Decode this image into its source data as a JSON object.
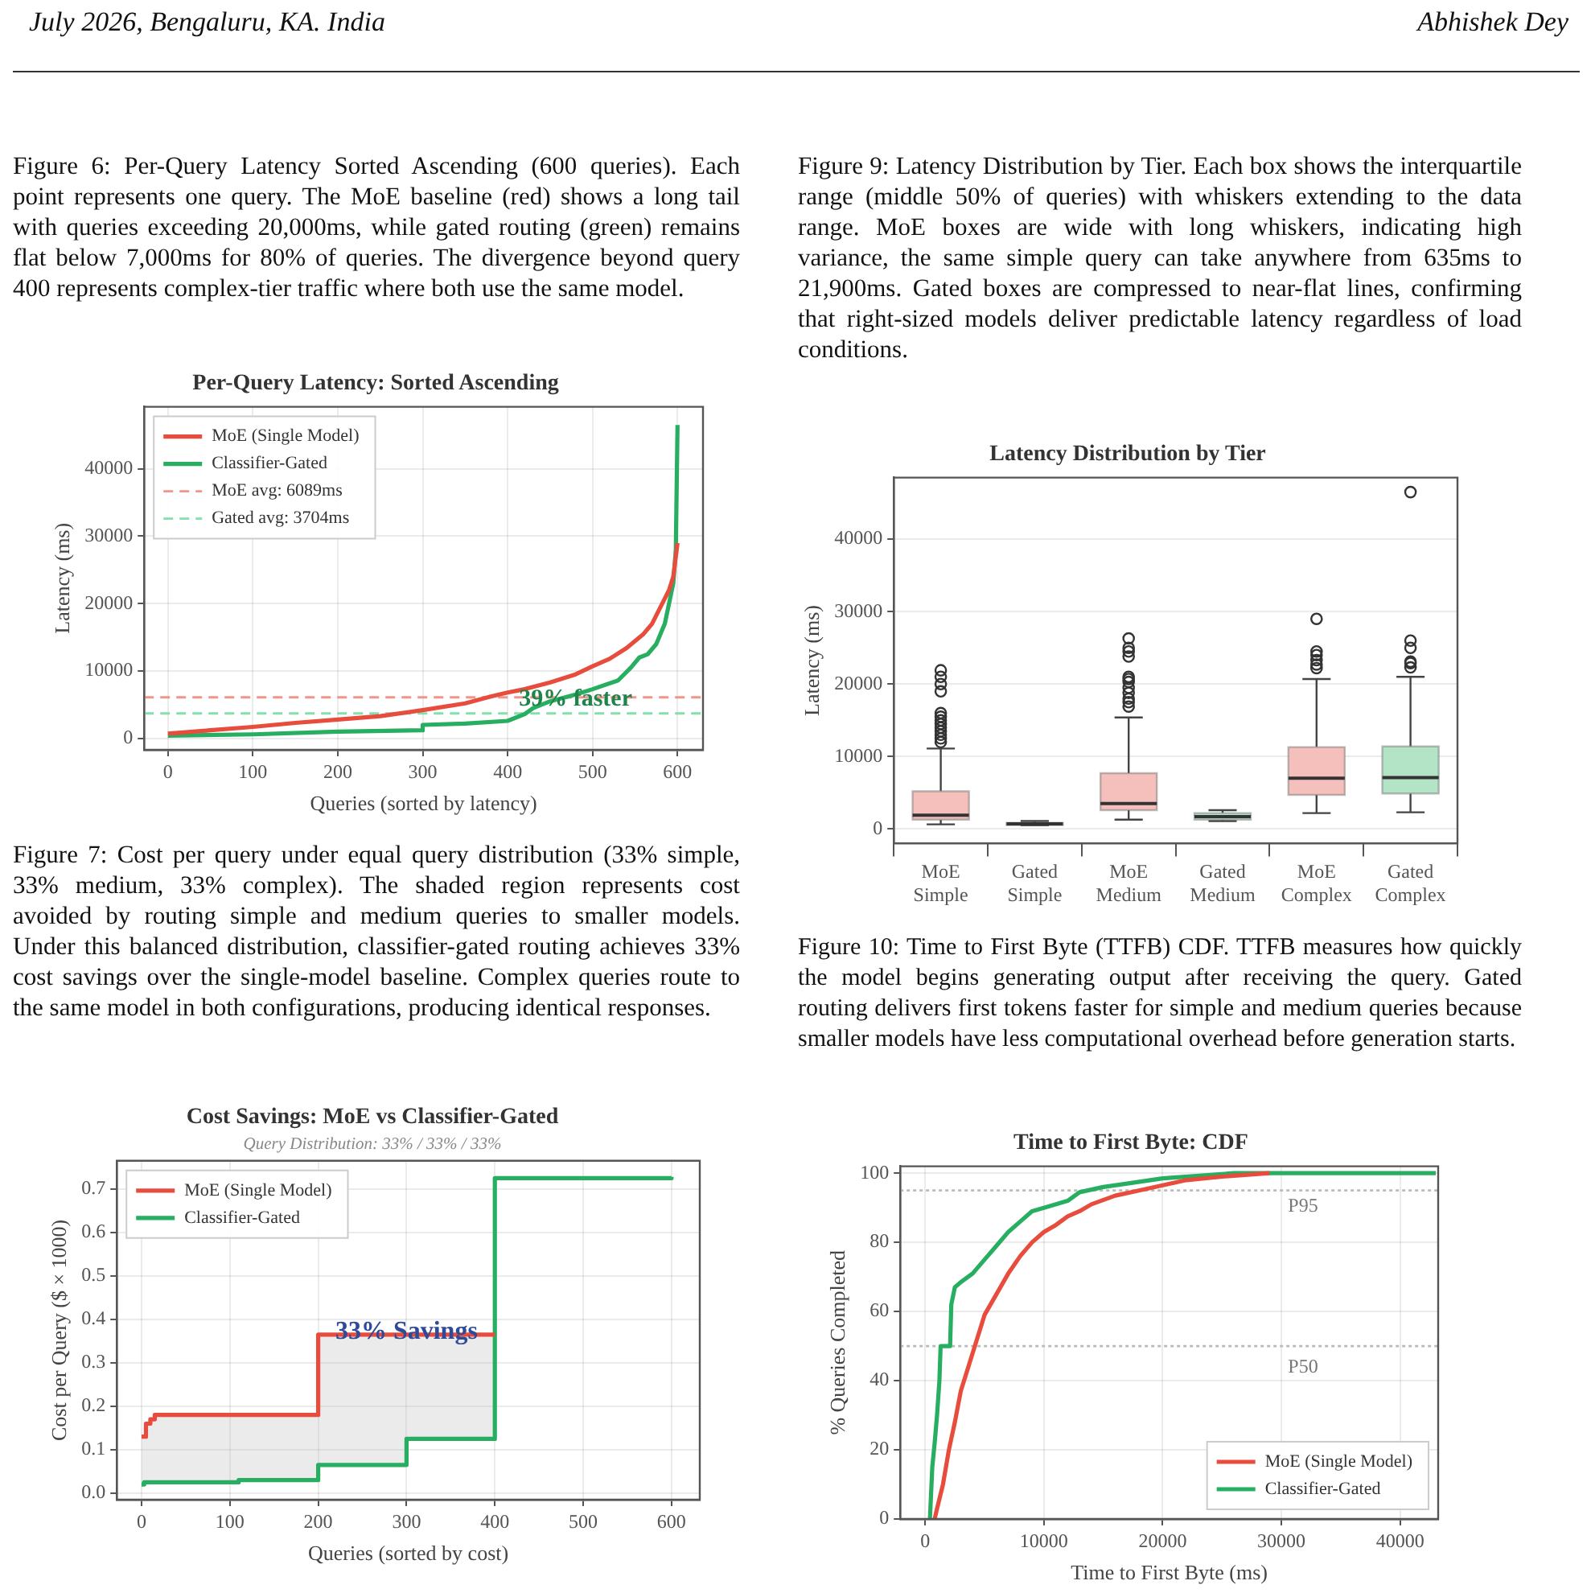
{
  "chart_data": [
    {
      "type": "line",
      "title": "Per-Query Latency: Sorted Ascending",
      "xlabel": "Queries (sorted by latency)",
      "ylabel": "Latency (ms)",
      "xlim": [
        -28,
        630
      ],
      "ylim": [
        -1700,
        49200
      ],
      "xticks": [
        0,
        100,
        200,
        300,
        400,
        500,
        600
      ],
      "yticks": [
        0,
        10000,
        20000,
        30000,
        40000
      ],
      "grid": true,
      "legend": "top left",
      "series": [
        {
          "name": "MoE (Single Model)",
          "color": "#e74c3c",
          "x": [
            0,
            50,
            100,
            150,
            200,
            250,
            300,
            350,
            380,
            400,
            420,
            450,
            480,
            500,
            520,
            540,
            560,
            570,
            580,
            590,
            595,
            600
          ],
          "values": [
            700,
            1200,
            1700,
            2300,
            2800,
            3300,
            4200,
            5200,
            6200,
            6800,
            7300,
            8300,
            9500,
            10700,
            11800,
            13400,
            15500,
            17000,
            19500,
            22000,
            24000,
            29000
          ]
        },
        {
          "name": "Classifier-Gated",
          "color": "#27ae60",
          "x": [
            0,
            100,
            200,
            299,
            300,
            350,
            400,
            420,
            430,
            450,
            480,
            500,
            530,
            545,
            555,
            565,
            575,
            585,
            590,
            595,
            598,
            600
          ],
          "values": [
            400,
            600,
            1000,
            1200,
            2000,
            2200,
            2600,
            3600,
            4500,
            5500,
            6500,
            7300,
            8600,
            10500,
            12000,
            12500,
            14000,
            17000,
            20000,
            23000,
            28000,
            46500
          ]
        }
      ],
      "ref_lines": [
        {
          "axis": "y",
          "value": 6089,
          "label": "MoE avg: 6089ms",
          "color": "#f1948a",
          "line_style": "dashed"
        },
        {
          "axis": "y",
          "value": 3704,
          "label": "Gated avg: 3704ms",
          "color": "#82e0aa",
          "line_style": "dashed"
        }
      ],
      "annotations": [
        "July 2026, Bengaluru, KA. India",
        "Abhishek Dey",
        "Figure 6: Per-Query Latency Sorted Ascending (600 queries). Each point represents one query. The MoE baseline (red) shows a long tail with queries exceeding 20,000ms, while gated routing (green) remains flat below 7,000ms for 80% of queries. The divergence beyond query 400 represents complex-tier traffic where both use the same model.",
        {
          "text": "39% faster",
          "x": 480,
          "y": 5800
        }
      ]
    },
    {
      "type": "step",
      "title": "Cost Savings: MoE vs Classifier-Gated",
      "subtitle": "Query Distribution: 33% / 33% / 33%",
      "xlabel": "Queries (sorted by cost)",
      "ylabel": "Cost per Query ($ × 1000)",
      "xlim": [
        -28,
        632
      ],
      "ylim": [
        -0.015,
        0.765
      ],
      "xticks": [
        0,
        100,
        200,
        300,
        400,
        500,
        600
      ],
      "yticks": [
        {
          "value": 0,
          "label": "0.0"
        },
        0.1,
        0.2,
        0.3,
        0.4,
        0.5,
        0.6,
        0.7
      ],
      "grid": true,
      "legend": "top left",
      "series": [
        {
          "name": "MoE (Single Model)",
          "color": "#e74c3c",
          "x": [
            0,
            3,
            5,
            10,
            15,
            110,
            200,
            300,
            400
          ],
          "values": [
            0.13,
            0.13,
            0.16,
            0.17,
            0.18,
            0.18,
            0.365,
            0.365,
            0.365
          ],
          "lower": [
            0.02,
            0.025,
            0.025,
            0.025,
            0.025,
            0.03,
            0.065,
            0.125,
            0.125
          ],
          "upper": [
            0.13,
            0.13,
            0.16,
            0.17,
            0.18,
            0.18,
            0.365,
            0.365,
            0.365
          ]
        },
        {
          "name": "Classifier-Gated",
          "color": "#27ae60",
          "x": [
            0,
            3,
            110,
            200,
            300,
            400,
            600
          ],
          "values": [
            0.02,
            0.025,
            0.03,
            0.065,
            0.125,
            0.725,
            0.728
          ]
        }
      ],
      "annotations": [
        "Figure 7: Cost per query under equal query distribution (33% simple, 33% medium, 33% complex). The shaded region represents cost avoided by routing simple and medium queries to smaller models. Under this balanced distribution, classifier-gated routing achieves 33% cost savings over the single-model baseline. Complex queries route to the same model in both configurations, producing identical responses.",
        {
          "text": "33% Savings",
          "x": 300,
          "y": 0.37
        }
      ]
    },
    {
      "type": "box",
      "title": "Latency Distribution by Tier",
      "ylabel": "Latency (ms)",
      "categories": [
        "MoE\nSimple",
        "Gated\nSimple",
        "MoE\nMedium",
        "Gated\nMedium",
        "MoE\nComplex",
        "Gated\nComplex"
      ],
      "colors": [
        "#f5c0bb",
        "#f5c0bb",
        "#f5c0bb",
        "#b3e4c6",
        "#f5c0bb",
        "#b3e4c6"
      ],
      "ylim": [
        -2000,
        48500
      ],
      "yticks": [
        0,
        10000,
        20000,
        30000,
        40000
      ],
      "grid": "y",
      "boxes": [
        {
          "low": 635,
          "q1": 1300,
          "median": 1900,
          "q3": 5200,
          "high": 11100,
          "outliers": [
            12000,
            12500,
            13000,
            13500,
            14000,
            14500,
            15000,
            15500,
            16000,
            19000,
            20000,
            21000,
            21900
          ]
        },
        {
          "low": 500,
          "q1": 550,
          "median": 700,
          "q3": 850,
          "high": 1100
        },
        {
          "low": 1300,
          "q1": 2600,
          "median": 3500,
          "q3": 7700,
          "high": 15400,
          "outliers": [
            16900,
            17500,
            18000,
            18800,
            19500,
            20300,
            20700,
            21000,
            23800,
            24500,
            25000,
            26300
          ]
        },
        {
          "low": 1100,
          "q1": 1300,
          "median": 1700,
          "q3": 2200,
          "high": 2600
        },
        {
          "low": 2200,
          "q1": 4700,
          "median": 7000,
          "q3": 11300,
          "high": 20700,
          "outliers": [
            22200,
            22700,
            23300,
            24000,
            24500,
            29000
          ]
        },
        {
          "low": 2300,
          "q1": 4900,
          "median": 7100,
          "q3": 11400,
          "high": 21000,
          "outliers": [
            22300,
            22900,
            23100,
            25000,
            26000,
            46500
          ]
        }
      ],
      "annotations": [
        "Figure 9: Latency Distribution by Tier. Each box shows the interquartile range (middle 50% of queries) with whiskers extending to the data range. MoE boxes are wide with long whiskers, indicating high variance, the same simple query can take anywhere from 635ms to 21,900ms. Gated boxes are compressed to near-flat lines, confirming that right-sized models deliver predictable latency regardless of load conditions."
      ]
    },
    {
      "type": "line",
      "title": "Time to First Byte: CDF",
      "xlabel": "Time to First Byte (ms)",
      "ylabel": "% Queries Completed",
      "xlim": [
        -2100,
        43200
      ],
      "ylim": [
        0,
        102
      ],
      "xticks": [
        0,
        10000,
        20000,
        30000,
        40000
      ],
      "yticks": [
        0,
        20,
        40,
        60,
        80,
        100
      ],
      "grid": true,
      "legend": "bottom right",
      "series": [
        {
          "name": "MoE (Single Model)",
          "color": "#e74c3c",
          "x": [
            800,
            1000,
            1500,
            2000,
            2500,
            3000,
            4000,
            5000,
            6000,
            7000,
            8000,
            9000,
            10000,
            11000,
            12000,
            13000,
            14000,
            16000,
            18000,
            20000,
            22000,
            25000,
            29000
          ],
          "values": [
            0,
            3,
            10,
            20,
            28,
            37,
            48,
            59,
            65,
            71,
            76,
            80,
            83,
            85,
            87.5,
            89,
            91,
            93.5,
            95,
            96.5,
            98,
            99,
            100
          ]
        },
        {
          "name": "Classifier-Gated",
          "color": "#27ae60",
          "x": [
            400,
            600,
            800,
            1000,
            1200,
            1300,
            2100,
            2200,
            2500,
            3000,
            4000,
            5000,
            6000,
            7000,
            8000,
            9000,
            10000,
            12000,
            13000,
            15000,
            17000,
            20000,
            26000,
            43000
          ],
          "values": [
            0,
            15,
            22,
            30,
            40,
            50,
            50,
            62,
            67,
            68.5,
            71,
            75,
            79,
            83,
            86,
            89,
            90,
            92,
            94.5,
            96,
            97,
            98.5,
            100,
            100
          ]
        }
      ],
      "ref_lines": [
        {
          "axis": "y",
          "value": 95,
          "color": "#bbbbbb",
          "line_style": "dotted"
        },
        {
          "axis": "y",
          "value": 50,
          "color": "#bbbbbb",
          "line_style": "dotted"
        }
      ],
      "annotations": [
        "Figure 10: Time to First Byte (TTFB) CDF. TTFB measures how quickly the model begins generating output after receiving the query. Gated routing delivers first tokens faster for simple and medium queries because smaller models have less computational overhead before generation starts.",
        "P95",
        "P50"
      ]
    }
  ]
}
